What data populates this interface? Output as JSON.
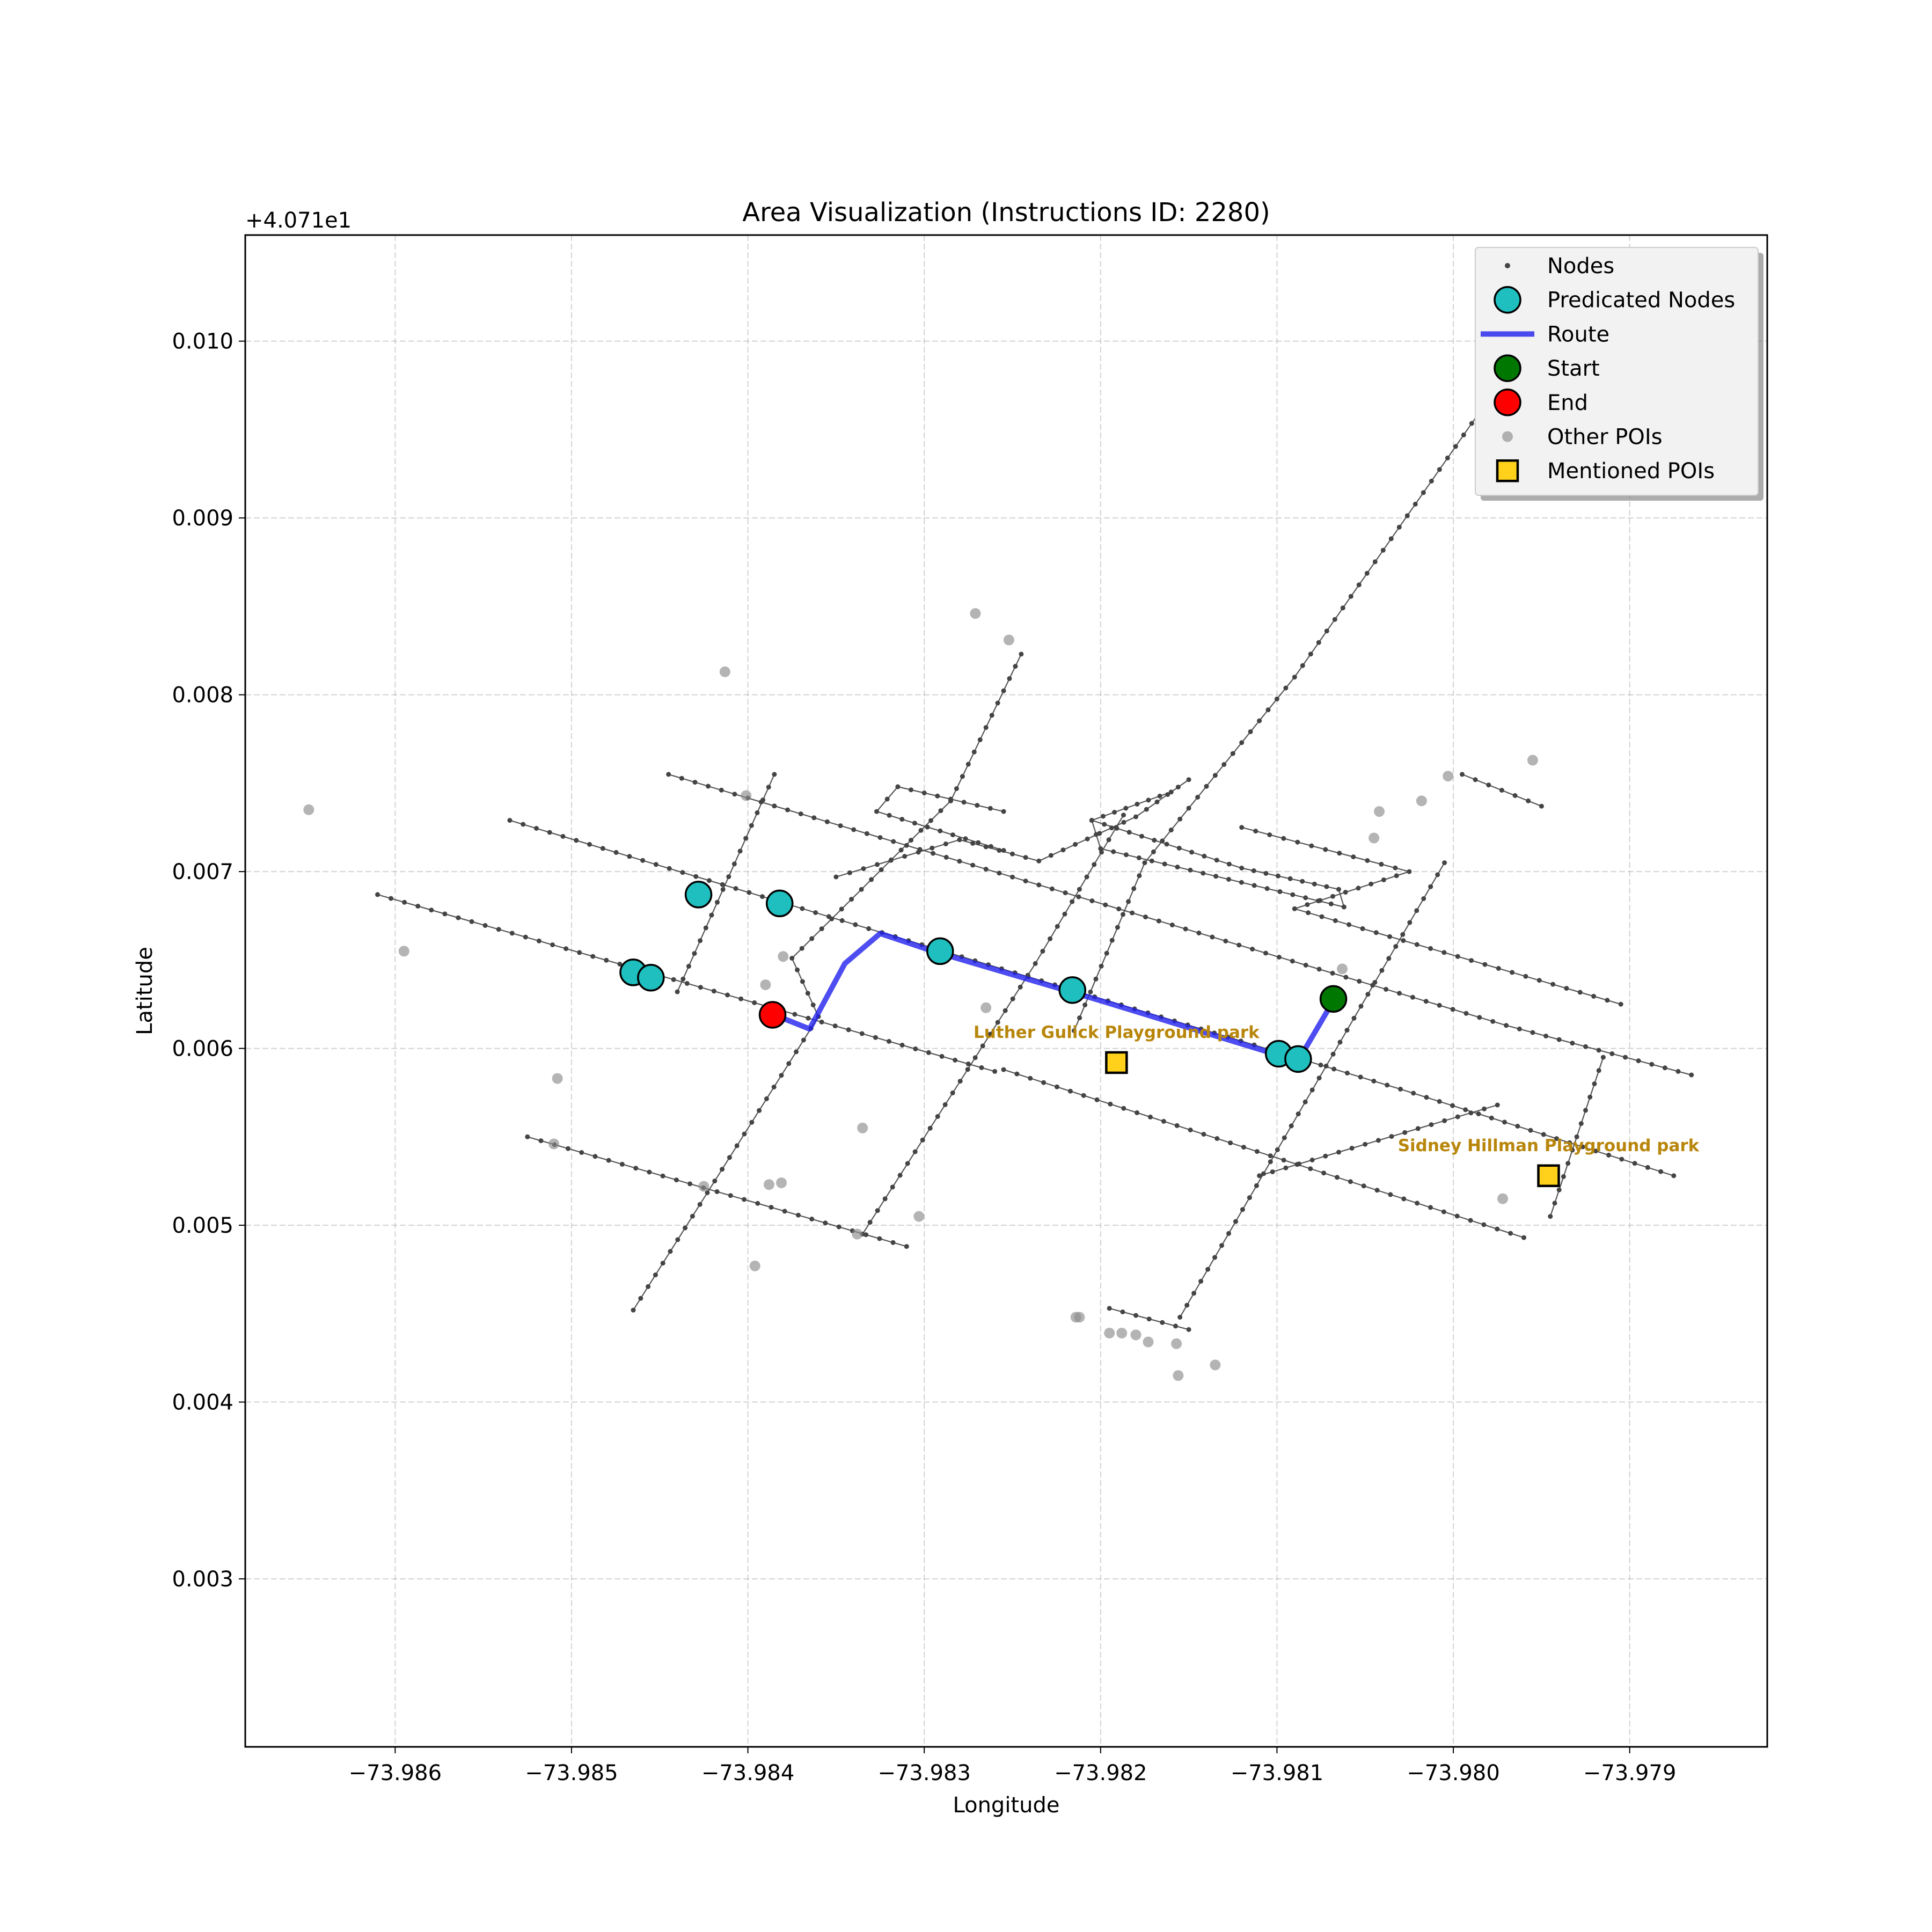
{
  "chart_data": {
    "type": "scatter",
    "title": "Area Visualization (Instructions ID: 2280)",
    "xlabel": "Longitude",
    "ylabel": "Latitude",
    "y_offset_label": "+4.071e1",
    "xlim": [
      -73.98685,
      -73.97822
    ],
    "ylim": [
      0.00205,
      0.0106
    ],
    "x_ticks": [
      {
        "v": -73.986,
        "label": "−73.986"
      },
      {
        "v": -73.985,
        "label": "−73.985"
      },
      {
        "v": -73.984,
        "label": "−73.984"
      },
      {
        "v": -73.983,
        "label": "−73.983"
      },
      {
        "v": -73.982,
        "label": "−73.982"
      },
      {
        "v": -73.981,
        "label": "−73.981"
      },
      {
        "v": -73.98,
        "label": "−73.980"
      },
      {
        "v": -73.979,
        "label": "−73.979"
      }
    ],
    "y_ticks": [
      {
        "v": 0.003,
        "label": "0.003"
      },
      {
        "v": 0.004,
        "label": "0.004"
      },
      {
        "v": 0.005,
        "label": "0.005"
      },
      {
        "v": 0.006,
        "label": "0.006"
      },
      {
        "v": 0.007,
        "label": "0.007"
      },
      {
        "v": 0.008,
        "label": "0.008"
      },
      {
        "v": 0.009,
        "label": "0.009"
      },
      {
        "v": 0.01,
        "label": "0.010"
      }
    ],
    "grid": true,
    "legend_position": "upper right",
    "legend": [
      {
        "key": "nodes",
        "label": "Nodes"
      },
      {
        "key": "pred",
        "label": "Predicated Nodes"
      },
      {
        "key": "route",
        "label": "Route"
      },
      {
        "key": "start",
        "label": "Start"
      },
      {
        "key": "end",
        "label": "End"
      },
      {
        "key": "other",
        "label": "Other POIs"
      },
      {
        "key": "mentioned",
        "label": "Mentioned POIs"
      }
    ],
    "colors": {
      "nodes": "#444444",
      "pred": "#1fbfbf",
      "route": "#2020ee",
      "start": "#007700",
      "end": "#ff0000",
      "other": "#8c8c8c",
      "mentioned": "#ffd11a",
      "poi_label": "#b8860b"
    },
    "streets": [
      [
        [
          -73.98445,
          0.00755
        ],
        [
          -73.9822,
          0.00688
        ],
        [
          -73.9797,
          0.00613
        ],
        [
          -73.97865,
          0.00585
        ]
      ],
      [
        [
          -73.98535,
          0.00729
        ],
        [
          -73.9803,
          0.00577
        ],
        [
          -73.97875,
          0.00528
        ]
      ],
      [
        [
          -73.9861,
          0.00687
        ],
        [
          -73.9832,
          0.00604
        ],
        [
          -73.9826,
          0.00587
        ]
      ],
      [
        [
          -73.98525,
          0.0055
        ],
        [
          -73.9831,
          0.00488
        ]
      ],
      [
        [
          -73.98255,
          0.00588
        ],
        [
          -73.9796,
          0.00493
        ]
      ],
      [
        [
          -73.98465,
          0.00452
        ],
        [
          -73.9836,
          0.00618
        ],
        [
          -73.98375,
          0.00651
        ],
        [
          -73.98285,
          0.0074
        ]
      ],
      [
        [
          -73.98285,
          0.0074
        ],
        [
          -73.98245,
          0.00823
        ]
      ],
      [
        [
          -73.9844,
          0.00632
        ],
        [
          -73.98385,
          0.00755
        ]
      ],
      [
        [
          -73.98335,
          0.00495
        ],
        [
          -73.98237,
          0.00648
        ],
        [
          -73.98187,
          0.00732
        ]
      ],
      [
        [
          -73.98155,
          0.00448
        ],
        [
          -73.98005,
          0.00705
        ]
      ],
      [
        [
          -73.98215,
          0.0061
        ],
        [
          -73.98175,
          0.00705
        ],
        [
          -73.9809,
          0.0081
        ],
        [
          -73.97985,
          0.0096
        ]
      ],
      [
        [
          -73.97995,
          0.00755
        ],
        [
          -73.9795,
          0.00737
        ]
      ],
      [
        [
          -73.97945,
          0.00505
        ],
        [
          -73.97915,
          0.00595
        ]
      ],
      [
        [
          -73.9811,
          0.00528
        ],
        [
          -73.97975,
          0.00568
        ]
      ],
      [
        [
          -73.98195,
          0.00453
        ],
        [
          -73.9815,
          0.00441
        ]
      ],
      [
        [
          -73.9835,
          0.00697
        ],
        [
          -73.9828,
          0.00718
        ],
        [
          -73.98235,
          0.00706
        ],
        [
          -73.9818,
          0.00731
        ],
        [
          -73.9815,
          0.00752
        ]
      ],
      [
        [
          -73.98315,
          0.00748
        ],
        [
          -73.98255,
          0.00734
        ]
      ],
      [
        [
          -73.98315,
          0.00748
        ],
        [
          -73.98327,
          0.00734
        ],
        [
          -73.98255,
          0.00712
        ]
      ],
      [
        [
          -73.9812,
          0.00725
        ],
        [
          -73.98025,
          0.007
        ],
        [
          -73.9809,
          0.00679
        ],
        [
          -73.97905,
          0.00625
        ]
      ]
    ],
    "loop_streets": [
      [
        [
          -73.98205,
          0.00729
        ],
        [
          -73.9816,
          0.00745
        ]
      ],
      [
        [
          -73.98205,
          0.00729
        ],
        [
          -73.9812,
          0.00702
        ],
        [
          -73.98065,
          0.0069
        ],
        [
          -73.98062,
          0.0068
        ]
      ],
      [
        [
          -73.98205,
          0.00729
        ],
        [
          -73.982,
          0.00713
        ],
        [
          -73.98062,
          0.0068
        ]
      ]
    ],
    "route": [
      [
        -73.98068,
        0.00627
      ],
      [
        -73.98088,
        0.00593
      ],
      [
        -73.98105,
        0.00598
      ],
      [
        -73.982,
        0.00627
      ],
      [
        -73.98295,
        0.00655
      ],
      [
        -73.98325,
        0.00665
      ],
      [
        -73.98345,
        0.00648
      ],
      [
        -73.98365,
        0.00611
      ],
      [
        -73.98385,
        0.00619
      ]
    ],
    "predicated_nodes": [
      [
        -73.98465,
        0.00643
      ],
      [
        -73.98455,
        0.0064
      ],
      [
        -73.98428,
        0.00687
      ],
      [
        -73.98382,
        0.00682
      ],
      [
        -73.98291,
        0.00655
      ],
      [
        -73.98216,
        0.00633
      ],
      [
        -73.98099,
        0.00597
      ],
      [
        -73.98088,
        0.00594
      ]
    ],
    "start": [
      -73.98068,
      0.00628
    ],
    "end": [
      -73.98386,
      0.00619
    ],
    "other_pois": [
      [
        -73.98649,
        0.00735
      ],
      [
        -73.98595,
        0.00655
      ],
      [
        -73.98413,
        0.00813
      ],
      [
        -73.98271,
        0.00846
      ],
      [
        -73.98252,
        0.00831
      ],
      [
        -73.98401,
        0.00743
      ],
      [
        -73.9839,
        0.00636
      ],
      [
        -73.9838,
        0.00652
      ],
      [
        -73.98265,
        0.00623
      ],
      [
        -73.98508,
        0.00583
      ],
      [
        -73.9851,
        0.00546
      ],
      [
        -73.98425,
        0.00522
      ],
      [
        -73.98388,
        0.00523
      ],
      [
        -73.98381,
        0.00524
      ],
      [
        -73.98396,
        0.00477
      ],
      [
        -73.98335,
        0.00555
      ],
      [
        -73.98338,
        0.00495
      ],
      [
        -73.98303,
        0.00505
      ],
      [
        -73.98214,
        0.00448
      ],
      [
        -73.98212,
        0.00448
      ],
      [
        -73.98195,
        0.00439
      ],
      [
        -73.98188,
        0.00439
      ],
      [
        -73.9818,
        0.00438
      ],
      [
        -73.98173,
        0.00434
      ],
      [
        -73.98157,
        0.00433
      ],
      [
        -73.98156,
        0.00415
      ],
      [
        -73.98135,
        0.00421
      ],
      [
        -73.98063,
        0.00645
      ],
      [
        -73.98045,
        0.00719
      ],
      [
        -73.98042,
        0.00734
      ],
      [
        -73.98018,
        0.0074
      ],
      [
        -73.98003,
        0.00754
      ],
      [
        -73.97955,
        0.00763
      ],
      [
        -73.97972,
        0.00515
      ]
    ],
    "mentioned_pois": [
      {
        "name": "Luther Gulick Playground   park",
        "lon": -73.98191,
        "lat": 0.00592
      },
      {
        "name": "Sidney Hillman Playground   park",
        "lon": -73.97946,
        "lat": 0.00528
      }
    ]
  }
}
